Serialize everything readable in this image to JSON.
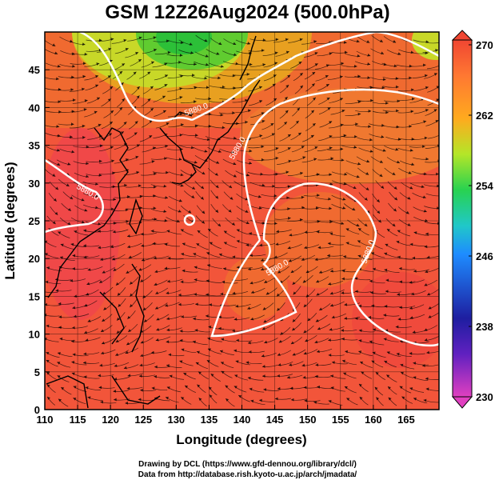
{
  "title": "GSM 12Z26Aug2024 (500.0hPa)",
  "x_axis": {
    "label": "Longitude (degrees)",
    "ticks": [
      "110",
      "115",
      "120",
      "125",
      "130",
      "135",
      "140",
      "145",
      "150",
      "155",
      "160",
      "165"
    ],
    "range": [
      110,
      170
    ]
  },
  "y_axis": {
    "label": "Latitude  (degrees)",
    "ticks": [
      "0",
      "5",
      "10",
      "15",
      "20",
      "25",
      "30",
      "35",
      "40",
      "45"
    ],
    "range": [
      0,
      50
    ]
  },
  "colorbar": {
    "ticks": [
      "230",
      "238",
      "246",
      "254",
      "262",
      "270"
    ],
    "range": [
      230,
      270
    ],
    "colors": [
      "#e040c0",
      "#1e1ea0",
      "#1e8cff",
      "#28d250",
      "#b4e628",
      "#ffaa1e",
      "#ff7832",
      "#f04632"
    ]
  },
  "contour_labels": [
    "5880.0",
    "5880.0",
    "5880.0",
    "5880.0",
    "5880.0"
  ],
  "credits": {
    "line1": "Drawing by DCL (https://www.gfd-dennou.org/library/dcl/)",
    "line2": "Data from http://database.rish.kyoto-u.ac.jp/arch/jmadata/"
  },
  "map_features": {
    "shaded_field": "temperature (K)",
    "vectors": "streamlines",
    "contour": "geopotential height 5880 m",
    "typhoon_center": {
      "lon": 132,
      "lat": 27
    }
  }
}
